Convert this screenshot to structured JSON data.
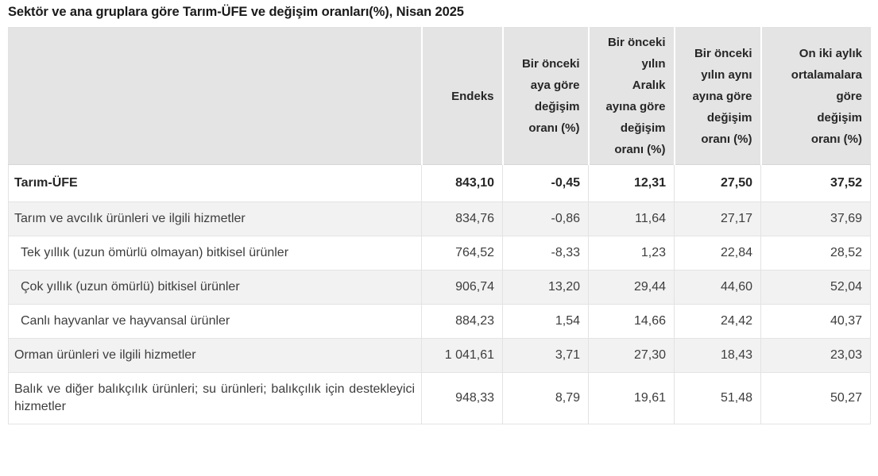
{
  "title": "Sektör ve ana gruplara göre Tarım-ÜFE ve değişim oranları(%), Nisan 2025",
  "table": {
    "columns": [
      "",
      "Endeks",
      "Bir önceki\naya göre\ndeğişim\noranı (%)",
      "Bir önceki\nyılın\nAralık\nayına göre\ndeğişim\noranı (%)",
      "Bir önceki\nyılın aynı\nayına göre\ndeğişim\noranı (%)",
      "On iki aylık\nortalamalara\ngöre\ndeğişim\noranı (%)"
    ],
    "rows": [
      {
        "label": "Tarım-ÜFE",
        "values": [
          "843,10",
          "-0,45",
          "12,31",
          "27,50",
          "37,52"
        ]
      },
      {
        "label": "Tarım ve avcılık ürünleri ve ilgili hizmetler",
        "values": [
          "834,76",
          "-0,86",
          "11,64",
          "27,17",
          "37,69"
        ]
      },
      {
        "label": "Tek yıllık (uzun ömürlü olmayan) bitkisel ürünler",
        "values": [
          "764,52",
          "-8,33",
          "1,23",
          "22,84",
          "28,52"
        ]
      },
      {
        "label": "Çok yıllık (uzun ömürlü) bitkisel ürünler",
        "values": [
          "906,74",
          "13,20",
          "29,44",
          "44,60",
          "52,04"
        ]
      },
      {
        "label": "Canlı hayvanlar ve hayvansal ürünler",
        "values": [
          "884,23",
          "1,54",
          "14,66",
          "24,42",
          "40,37"
        ]
      },
      {
        "label": "Orman ürünleri ve ilgili hizmetler",
        "values": [
          "1 041,61",
          "3,71",
          "27,30",
          "18,43",
          "23,03"
        ]
      },
      {
        "label": "Balık ve diğer balıkçılık ürünleri; su ürünleri; balıkçılık için destekleyici hizmetler",
        "values": [
          "948,33",
          "8,79",
          "19,61",
          "51,48",
          "50,27"
        ]
      }
    ]
  },
  "colors": {
    "header_bg": "#e4e4e4",
    "stripe_bg": "#f2f2f2",
    "border": "#e3e3e3",
    "title_text": "#1a1a1a",
    "body_text": "#3d3d3d"
  }
}
